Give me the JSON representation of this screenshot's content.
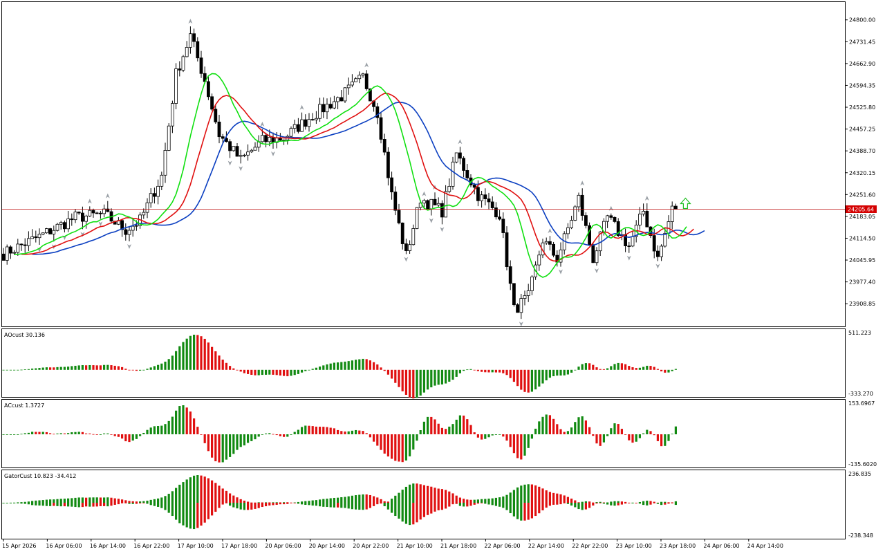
{
  "chart_data": {
    "type": "candlestick",
    "symbol": "",
    "main": {
      "y_ticks": [
        "24800.00",
        "24731.45",
        "24662.90",
        "24594.35",
        "24525.80",
        "24457.25",
        "24388.70",
        "24320.15",
        "24251.60",
        "24183.05",
        "24114.50",
        "24045.95",
        "23977.40",
        "23908.85"
      ],
      "ylim": [
        23842,
        24845
      ],
      "current_price": "24205.64",
      "current_value": 24205.64,
      "first_close": 24065,
      "anchors": [
        {
          "i": 0,
          "p": 24065
        },
        {
          "i": 10,
          "p": 24120
        },
        {
          "i": 20,
          "p": 24180
        },
        {
          "i": 28,
          "p": 24190
        },
        {
          "i": 34,
          "p": 24140
        },
        {
          "i": 38,
          "p": 24170
        },
        {
          "i": 44,
          "p": 24310
        },
        {
          "i": 48,
          "p": 24630
        },
        {
          "i": 52,
          "p": 24750
        },
        {
          "i": 56,
          "p": 24610
        },
        {
          "i": 60,
          "p": 24440
        },
        {
          "i": 66,
          "p": 24360
        },
        {
          "i": 72,
          "p": 24420
        },
        {
          "i": 78,
          "p": 24430
        },
        {
          "i": 86,
          "p": 24500
        },
        {
          "i": 94,
          "p": 24560
        },
        {
          "i": 100,
          "p": 24620
        },
        {
          "i": 104,
          "p": 24510
        },
        {
          "i": 108,
          "p": 24250
        },
        {
          "i": 112,
          "p": 24060
        },
        {
          "i": 116,
          "p": 24240
        },
        {
          "i": 122,
          "p": 24200
        },
        {
          "i": 126,
          "p": 24380
        },
        {
          "i": 132,
          "p": 24250
        },
        {
          "i": 138,
          "p": 24190
        },
        {
          "i": 142,
          "p": 23890
        },
        {
          "i": 146,
          "p": 23930
        },
        {
          "i": 150,
          "p": 24110
        },
        {
          "i": 154,
          "p": 24050
        },
        {
          "i": 160,
          "p": 24240
        },
        {
          "i": 164,
          "p": 24050
        },
        {
          "i": 168,
          "p": 24180
        },
        {
          "i": 174,
          "p": 24090
        },
        {
          "i": 178,
          "p": 24200
        },
        {
          "i": 182,
          "p": 24050
        },
        {
          "i": 186,
          "p": 24205
        }
      ]
    },
    "x_ticks": [
      "15 Apr 2026",
      "16 Apr 06:00",
      "16 Apr 14:00",
      "16 Apr 22:00",
      "17 Apr 10:00",
      "17 Apr 18:00",
      "20 Apr 06:00",
      "20 Apr 14:00",
      "20 Apr 22:00",
      "21 Apr 10:00",
      "21 Apr 18:00",
      "22 Apr 06:00",
      "22 Apr 14:00",
      "22 Apr 22:00",
      "23 Apr 10:00",
      "23 Apr 18:00",
      "24 Apr 06:00",
      "24 Apr 14:00"
    ],
    "indicators": {
      "ao": {
        "label": "AOcust 30.136",
        "y_max": "511.223",
        "y_min": "-333.270"
      },
      "ac": {
        "label": "ACcust 1.3727",
        "y_max": "153.6967",
        "y_min": "-135.6020"
      },
      "gator": {
        "label": "GatorCust 10.823 -34.412",
        "y_max": "236.835",
        "y_min": "-238.348"
      }
    },
    "colors": {
      "jaw": "#0b3fc1",
      "teeth": "#e01010",
      "lips": "#10e010",
      "up_bar": "#128a12",
      "down_bar": "#e01010",
      "price_line": "#b80000",
      "price_tag": "#d40000",
      "arrow": "#24c024",
      "fractal": "#9aa0a6",
      "grid_border": "#000000"
    },
    "grid": false
  }
}
